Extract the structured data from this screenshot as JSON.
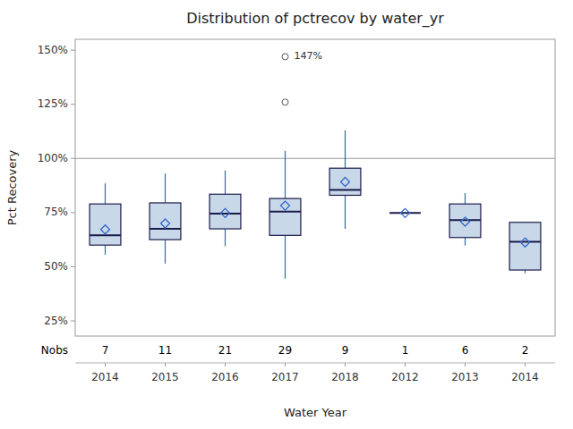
{
  "chart_data": {
    "type": "box",
    "title": "Distribution of pctrecov by water_yr",
    "x_label": "Water Year",
    "y_label": "Pct Recovery",
    "categories": [
      "2014",
      "2015",
      "2016",
      "2017",
      "2018",
      "2012",
      "2013",
      "2014"
    ],
    "nobs_label": "Nobs",
    "nobs": [
      7,
      11,
      21,
      29,
      9,
      1,
      6,
      2
    ],
    "ylim": [
      0.18,
      1.55
    ],
    "yticks": [
      {
        "value": 0.25,
        "label": "25%"
      },
      {
        "value": 0.5,
        "label": "50%"
      },
      {
        "value": 0.75,
        "label": "75%"
      },
      {
        "value": 1.0,
        "label": "100%"
      },
      {
        "value": 1.25,
        "label": "125%"
      },
      {
        "value": 1.5,
        "label": "150%"
      }
    ],
    "reference_line": 1.0,
    "grid": false,
    "color": "#c8d8e8",
    "boxes": [
      {
        "q1": 0.6,
        "median": 0.645,
        "q3": 0.79,
        "whisker_low": 0.555,
        "whisker_high": 0.885,
        "mean": 0.672,
        "outliers": []
      },
      {
        "q1": 0.625,
        "median": 0.675,
        "q3": 0.795,
        "whisker_low": 0.515,
        "whisker_high": 0.93,
        "mean": 0.7,
        "outliers": []
      },
      {
        "q1": 0.675,
        "median": 0.745,
        "q3": 0.835,
        "whisker_low": 0.595,
        "whisker_high": 0.945,
        "mean": 0.748,
        "outliers": []
      },
      {
        "q1": 0.645,
        "median": 0.755,
        "q3": 0.815,
        "whisker_low": 0.445,
        "whisker_high": 1.035,
        "mean": 0.782,
        "outliers": [
          1.26,
          1.47
        ]
      },
      {
        "q1": 0.83,
        "median": 0.855,
        "q3": 0.955,
        "whisker_low": 0.675,
        "whisker_high": 1.13,
        "mean": 0.892,
        "outliers": []
      },
      {
        "q1": 0.748,
        "median": 0.748,
        "q3": 0.748,
        "whisker_low": 0.748,
        "whisker_high": 0.748,
        "mean": 0.748,
        "outliers": []
      },
      {
        "q1": 0.635,
        "median": 0.715,
        "q3": 0.79,
        "whisker_low": 0.598,
        "whisker_high": 0.84,
        "mean": 0.708,
        "outliers": []
      },
      {
        "q1": 0.485,
        "median": 0.615,
        "q3": 0.705,
        "whisker_low": 0.47,
        "whisker_high": 0.705,
        "mean": 0.612,
        "outliers": []
      }
    ],
    "annotations": [
      {
        "text": "147%",
        "x": 3,
        "y": 1.47
      }
    ]
  }
}
